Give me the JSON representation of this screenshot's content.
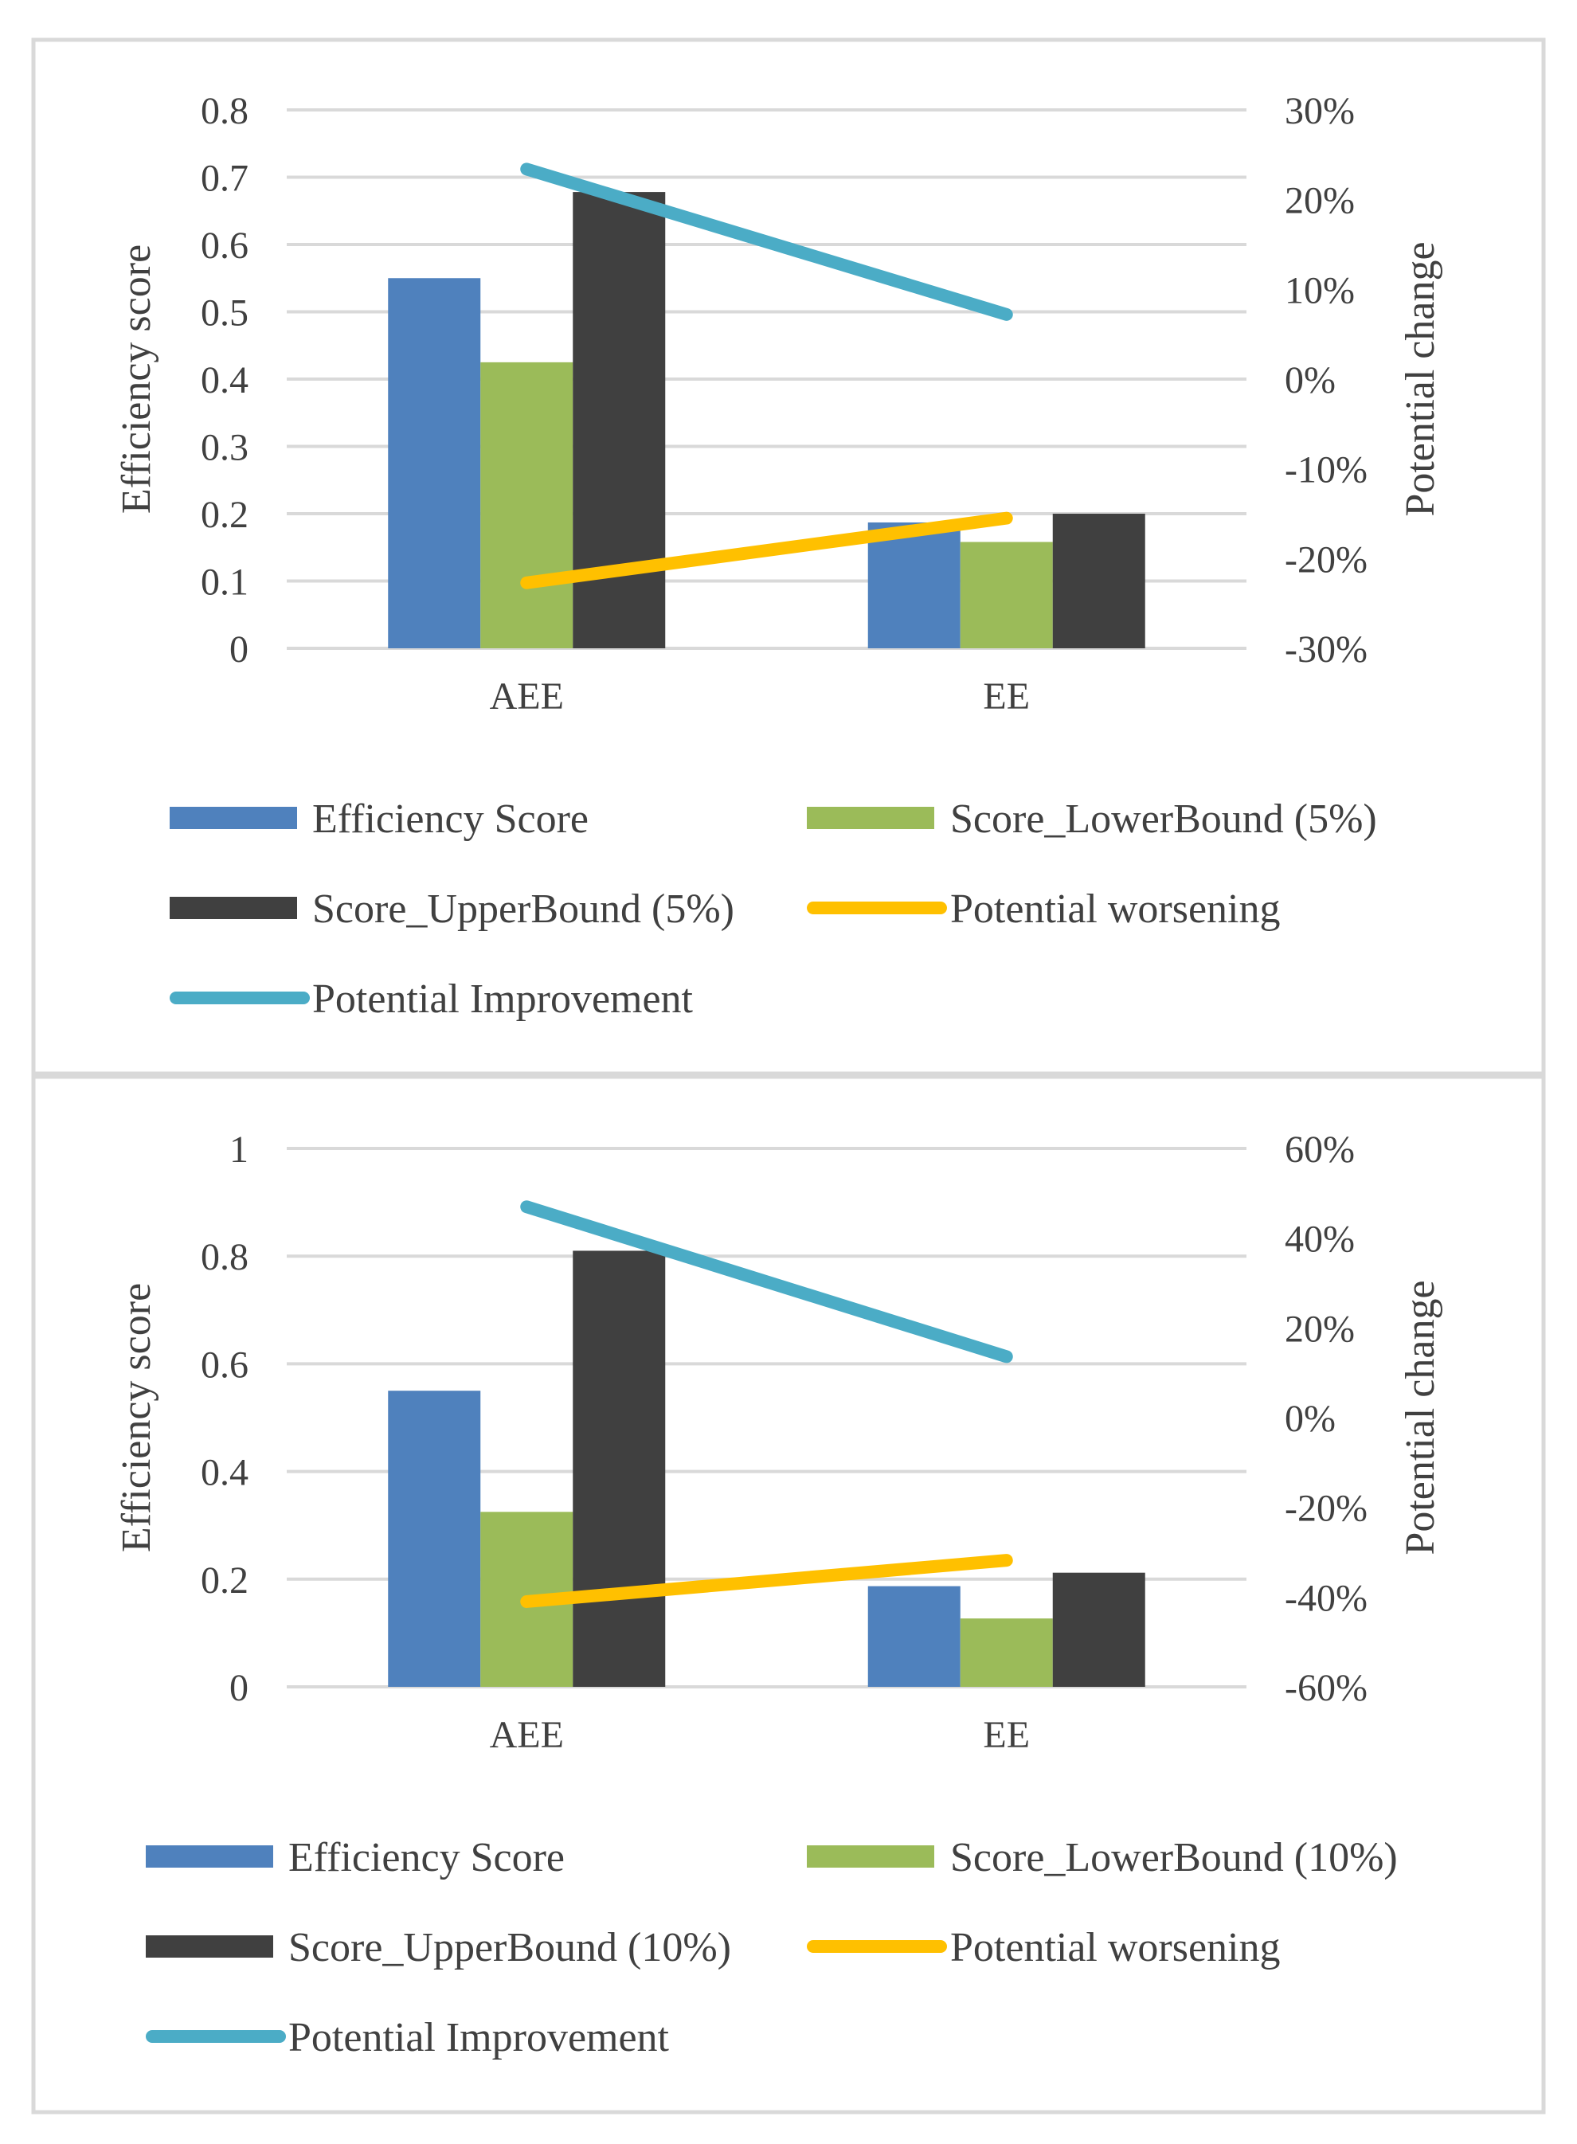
{
  "chart_data": [
    {
      "type": "bar",
      "title": "",
      "categories": [
        "AEE",
        "EE"
      ],
      "ylabel": "Efficiency score",
      "y2label": "Potential change",
      "ylim": [
        0,
        0.8
      ],
      "yticks": [
        0,
        0.1,
        0.2,
        0.3,
        0.4,
        0.5,
        0.6,
        0.7,
        0.8
      ],
      "ytick_labels": [
        "0",
        "0.1",
        "0.2",
        "0.3",
        "0.4",
        "0.5",
        "0.6",
        "0.7",
        "0.8"
      ],
      "y2lim": [
        -0.3,
        0.3
      ],
      "y2ticks": [
        -0.3,
        -0.2,
        -0.1,
        0,
        0.1,
        0.2,
        0.3
      ],
      "y2tick_labels": [
        "-30%",
        "-20%",
        "-10%",
        "0%",
        "10%",
        "20%",
        "30%"
      ],
      "grid": true,
      "legend_position": "bottom",
      "bar_series": [
        {
          "name": "Efficiency Score",
          "values": [
            0.55,
            0.187
          ],
          "color": "#4f81bd"
        },
        {
          "name": "Score_LowerBound (5%)",
          "values": [
            0.425,
            0.158
          ],
          "color": "#9bbb59"
        },
        {
          "name": "Score_UpperBound (5%)",
          "values": [
            0.678,
            0.2
          ],
          "color": "#404040"
        }
      ],
      "line_series": [
        {
          "name": "Potential worsening",
          "values": [
            -0.227,
            -0.155
          ],
          "color": "#ffc000",
          "axis": "secondary"
        },
        {
          "name": "Potential Improvement",
          "values": [
            0.234,
            0.072
          ],
          "color": "#4bacc6",
          "axis": "secondary"
        }
      ],
      "legend_order": [
        "Efficiency Score",
        "Score_LowerBound (5%)",
        "Score_UpperBound (5%)",
        "Potential worsening",
        "Potential Improvement"
      ]
    },
    {
      "type": "bar",
      "title": "",
      "categories": [
        "AEE",
        "EE"
      ],
      "ylabel": "Efficiency score",
      "y2label": "Potential change",
      "ylim": [
        0,
        1
      ],
      "yticks": [
        0,
        0.2,
        0.4,
        0.6,
        0.8,
        1
      ],
      "ytick_labels": [
        "0",
        "0.2",
        "0.4",
        "0.6",
        "0.8",
        "1"
      ],
      "y2lim": [
        -0.6,
        0.6
      ],
      "y2ticks": [
        -0.6,
        -0.4,
        -0.2,
        0,
        0.2,
        0.4,
        0.6
      ],
      "y2tick_labels": [
        "-60%",
        "-40%",
        "-20%",
        "0%",
        "20%",
        "40%",
        "60%"
      ],
      "grid": true,
      "legend_position": "bottom",
      "bar_series": [
        {
          "name": "Efficiency Score",
          "values": [
            0.55,
            0.187
          ],
          "color": "#4f81bd"
        },
        {
          "name": "Score_LowerBound (10%)",
          "values": [
            0.325,
            0.127
          ],
          "color": "#9bbb59"
        },
        {
          "name": "Score_UpperBound (10%)",
          "values": [
            0.81,
            0.212
          ],
          "color": "#404040"
        }
      ],
      "line_series": [
        {
          "name": "Potential worsening",
          "values": [
            -0.41,
            -0.318
          ],
          "color": "#ffc000",
          "axis": "secondary"
        },
        {
          "name": "Potential Improvement",
          "values": [
            0.47,
            0.136
          ],
          "color": "#4bacc6",
          "axis": "secondary"
        }
      ],
      "legend_order": [
        "Efficiency Score",
        "Score_LowerBound (10%)",
        "Score_UpperBound (10%)",
        "Potential worsening",
        "Potential Improvement"
      ]
    }
  ]
}
